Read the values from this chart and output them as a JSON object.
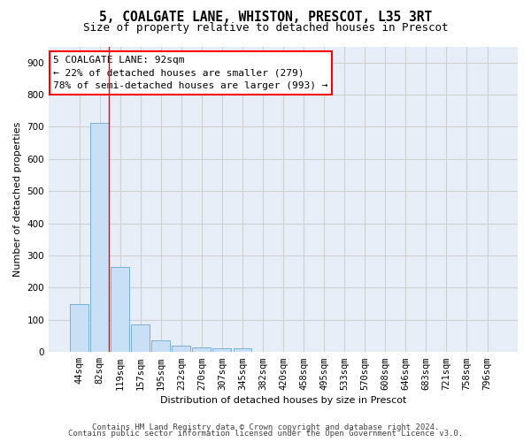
{
  "title_line1": "5, COALGATE LANE, WHISTON, PRESCOT, L35 3RT",
  "title_line2": "Size of property relative to detached houses in Prescot",
  "xlabel": "Distribution of detached houses by size in Prescot",
  "ylabel": "Number of detached properties",
  "bar_color": "#c8dff5",
  "bar_edge_color": "#7bafd4",
  "categories": [
    "44sqm",
    "82sqm",
    "119sqm",
    "157sqm",
    "195sqm",
    "232sqm",
    "270sqm",
    "307sqm",
    "345sqm",
    "382sqm",
    "420sqm",
    "458sqm",
    "495sqm",
    "533sqm",
    "570sqm",
    "608sqm",
    "646sqm",
    "683sqm",
    "721sqm",
    "758sqm",
    "796sqm"
  ],
  "values": [
    148,
    711,
    263,
    85,
    36,
    21,
    14,
    11,
    11,
    0,
    0,
    0,
    0,
    0,
    0,
    0,
    0,
    0,
    0,
    0,
    0
  ],
  "ylim": [
    0,
    950
  ],
  "yticks": [
    0,
    100,
    200,
    300,
    400,
    500,
    600,
    700,
    800,
    900
  ],
  "annotation_text_line1": "5 COALGATE LANE: 92sqm",
  "annotation_text_line2": "← 22% of detached houses are smaller (279)",
  "annotation_text_line3": "78% of semi-detached houses are larger (993) →",
  "red_line_x": 1.47,
  "footer_line1": "Contains HM Land Registry data © Crown copyright and database right 2024.",
  "footer_line2": "Contains public sector information licensed under the Open Government Licence v3.0.",
  "background_color": "#ffffff",
  "plot_background_color": "#e8eef8",
  "grid_color": "#d0d0d0",
  "title_fontsize": 10.5,
  "subtitle_fontsize": 9,
  "axis_label_fontsize": 8,
  "tick_fontsize": 7.5,
  "annotation_fontsize": 8,
  "footer_fontsize": 6.5
}
